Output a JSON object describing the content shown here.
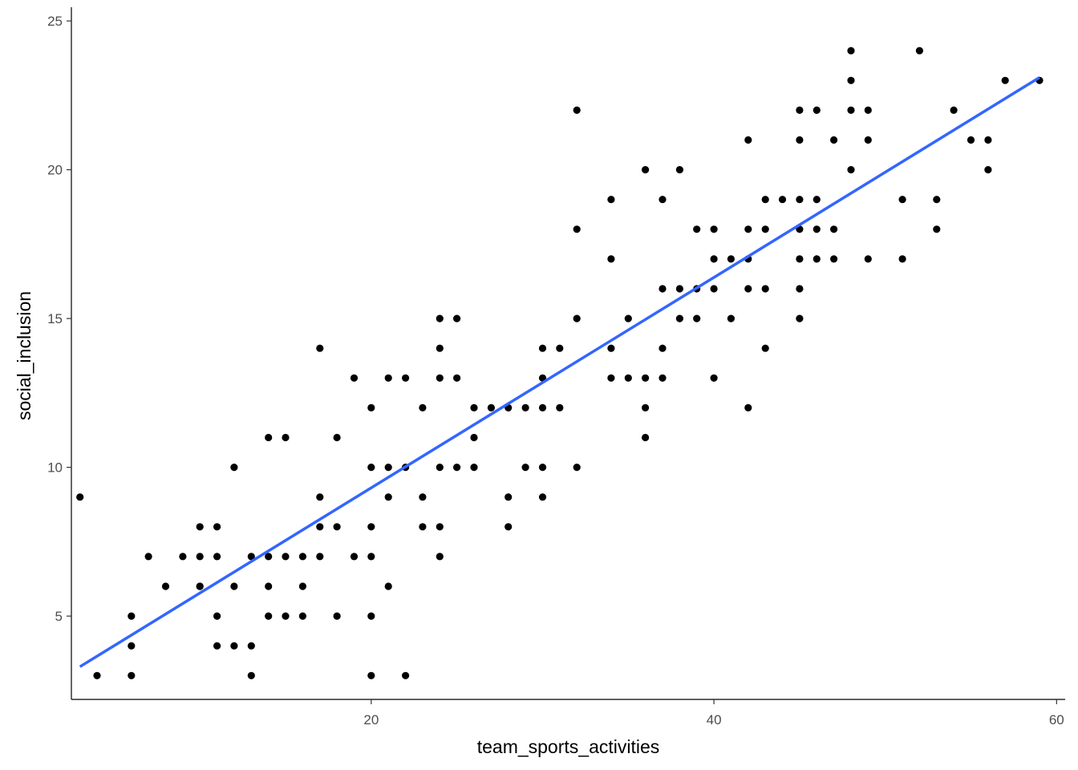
{
  "chart_data": {
    "type": "scatter",
    "xlabel": "team_sports_activities",
    "ylabel": "social_inclusion",
    "xlim": [
      2.5,
      60.5
    ],
    "ylim": [
      2.2,
      25.3
    ],
    "x_ticks": [
      20,
      40,
      60
    ],
    "y_ticks": [
      5,
      10,
      15,
      20,
      25
    ],
    "x_tick_labels": [
      "20",
      "40",
      "60"
    ],
    "y_tick_labels": [
      "5",
      "10",
      "15",
      "20",
      "25"
    ],
    "grid": false,
    "legend": "none",
    "point_color": "#000000",
    "fit_color": "#3366FF",
    "points": [
      [
        3,
        9
      ],
      [
        4,
        3
      ],
      [
        6,
        5
      ],
      [
        6,
        4
      ],
      [
        6,
        3
      ],
      [
        7,
        7
      ],
      [
        8,
        6
      ],
      [
        9,
        7
      ],
      [
        10,
        8
      ],
      [
        10,
        7
      ],
      [
        10,
        6
      ],
      [
        10,
        6
      ],
      [
        11,
        8
      ],
      [
        11,
        7
      ],
      [
        11,
        5
      ],
      [
        11,
        4
      ],
      [
        12,
        10
      ],
      [
        12,
        6
      ],
      [
        12,
        4
      ],
      [
        13,
        7
      ],
      [
        13,
        4
      ],
      [
        13,
        3
      ],
      [
        14,
        11
      ],
      [
        14,
        7
      ],
      [
        14,
        6
      ],
      [
        14,
        5
      ],
      [
        15,
        11
      ],
      [
        15,
        7
      ],
      [
        15,
        5
      ],
      [
        16,
        7
      ],
      [
        16,
        6
      ],
      [
        16,
        5
      ],
      [
        17,
        14
      ],
      [
        17,
        9
      ],
      [
        17,
        8
      ],
      [
        17,
        7
      ],
      [
        18,
        11
      ],
      [
        18,
        8
      ],
      [
        18,
        5
      ],
      [
        19,
        13
      ],
      [
        19,
        7
      ],
      [
        20,
        12
      ],
      [
        20,
        10
      ],
      [
        20,
        8
      ],
      [
        20,
        7
      ],
      [
        20,
        5
      ],
      [
        20,
        3
      ],
      [
        21,
        13
      ],
      [
        21,
        10
      ],
      [
        21,
        9
      ],
      [
        21,
        6
      ],
      [
        22,
        13
      ],
      [
        22,
        10
      ],
      [
        22,
        3
      ],
      [
        23,
        12
      ],
      [
        23,
        9
      ],
      [
        23,
        8
      ],
      [
        24,
        15
      ],
      [
        24,
        14
      ],
      [
        24,
        13
      ],
      [
        24,
        10
      ],
      [
        24,
        8
      ],
      [
        24,
        7
      ],
      [
        25,
        15
      ],
      [
        25,
        13
      ],
      [
        25,
        10
      ],
      [
        26,
        12
      ],
      [
        26,
        11
      ],
      [
        26,
        10
      ],
      [
        27,
        12
      ],
      [
        28,
        12
      ],
      [
        28,
        9
      ],
      [
        28,
        8
      ],
      [
        29,
        12
      ],
      [
        29,
        10
      ],
      [
        30,
        14
      ],
      [
        30,
        13
      ],
      [
        30,
        12
      ],
      [
        30,
        10
      ],
      [
        30,
        9
      ],
      [
        31,
        14
      ],
      [
        31,
        12
      ],
      [
        32,
        22
      ],
      [
        32,
        18
      ],
      [
        32,
        15
      ],
      [
        32,
        10
      ],
      [
        34,
        19
      ],
      [
        34,
        17
      ],
      [
        34,
        14
      ],
      [
        34,
        13
      ],
      [
        35,
        15
      ],
      [
        35,
        13
      ],
      [
        36,
        20
      ],
      [
        36,
        13
      ],
      [
        36,
        12
      ],
      [
        36,
        11
      ],
      [
        37,
        19
      ],
      [
        37,
        16
      ],
      [
        37,
        14
      ],
      [
        37,
        13
      ],
      [
        38,
        20
      ],
      [
        38,
        16
      ],
      [
        38,
        15
      ],
      [
        39,
        18
      ],
      [
        39,
        16
      ],
      [
        39,
        15
      ],
      [
        40,
        18
      ],
      [
        40,
        17
      ],
      [
        40,
        16
      ],
      [
        40,
        13
      ],
      [
        41,
        17
      ],
      [
        41,
        15
      ],
      [
        42,
        21
      ],
      [
        42,
        18
      ],
      [
        42,
        17
      ],
      [
        42,
        16
      ],
      [
        42,
        12
      ],
      [
        43,
        19
      ],
      [
        43,
        18
      ],
      [
        43,
        16
      ],
      [
        43,
        14
      ],
      [
        44,
        19
      ],
      [
        45,
        22
      ],
      [
        45,
        21
      ],
      [
        45,
        19
      ],
      [
        45,
        18
      ],
      [
        45,
        17
      ],
      [
        45,
        16
      ],
      [
        45,
        15
      ],
      [
        46,
        22
      ],
      [
        46,
        19
      ],
      [
        46,
        18
      ],
      [
        46,
        17
      ],
      [
        47,
        21
      ],
      [
        47,
        18
      ],
      [
        47,
        17
      ],
      [
        48,
        24
      ],
      [
        48,
        23
      ],
      [
        48,
        22
      ],
      [
        48,
        20
      ],
      [
        49,
        22
      ],
      [
        49,
        21
      ],
      [
        49,
        17
      ],
      [
        51,
        19
      ],
      [
        51,
        17
      ],
      [
        52,
        24
      ],
      [
        53,
        19
      ],
      [
        53,
        18
      ],
      [
        54,
        22
      ],
      [
        55,
        21
      ],
      [
        56,
        21
      ],
      [
        56,
        20
      ],
      [
        57,
        23
      ],
      [
        59,
        23
      ]
    ],
    "fit_line": {
      "x": [
        3,
        59
      ],
      "y": [
        3.3,
        23.1
      ]
    }
  }
}
